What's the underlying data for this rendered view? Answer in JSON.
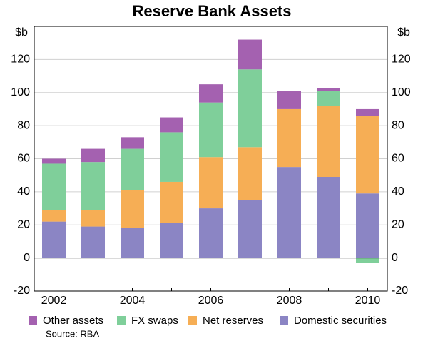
{
  "chart_data": {
    "type": "stacked_bar",
    "title": "Reserve Bank Assets",
    "y_label": "$b",
    "y2_label": "$b",
    "source": "Source: RBA",
    "categories": [
      "2002",
      null,
      "2004",
      null,
      "2006",
      null,
      "2008",
      null,
      "2010"
    ],
    "series": [
      {
        "name": "Other assets",
        "color": "#a461b0",
        "values": [
          3,
          8,
          7,
          9,
          11,
          18,
          11,
          1.5,
          4
        ]
      },
      {
        "name": "FX swaps",
        "color": "#7fcf9a",
        "values": [
          28,
          29,
          25,
          30,
          33,
          47,
          0,
          9,
          -3
        ]
      },
      {
        "name": "Net reserves",
        "color": "#f6ae55",
        "values": [
          7,
          10,
          23,
          25,
          31,
          32,
          35,
          43,
          47
        ]
      },
      {
        "name": "Domestic securities",
        "color": "#8b85c4",
        "values": [
          22,
          19,
          18,
          21,
          30,
          35,
          55,
          49,
          39
        ]
      }
    ],
    "ylim": [
      -20,
      140
    ],
    "yticks": [
      -20,
      0,
      20,
      40,
      60,
      80,
      100,
      120
    ],
    "grid": true
  }
}
